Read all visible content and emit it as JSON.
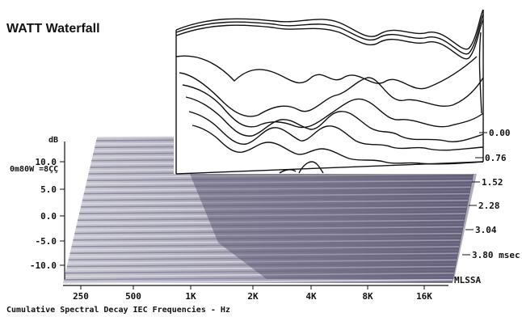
{
  "chart_data": {
    "type": "waterfall",
    "title": "WATT Waterfall",
    "subtitle": "0m80W =8ÇÇ",
    "y_axis_unit": "dB",
    "y_ticks": [
      "10.0",
      "5.0",
      "0.0",
      "-5.0",
      "-10.0"
    ],
    "x_ticks": [
      "250",
      "500",
      "1K",
      "2K",
      "4K",
      "8K",
      "16K"
    ],
    "x_caption": "Cumulative Spectral Decay   IEC Frequencies - Hz",
    "time_labels": [
      "0.00",
      "0.76",
      "1.52",
      "2.28",
      "3.04",
      "3.80 msec"
    ],
    "brand": "MLSSA",
    "colors": {
      "curve": "#111111",
      "floor_light": "#b8b8c4",
      "floor_dark": "#5a5870"
    }
  }
}
